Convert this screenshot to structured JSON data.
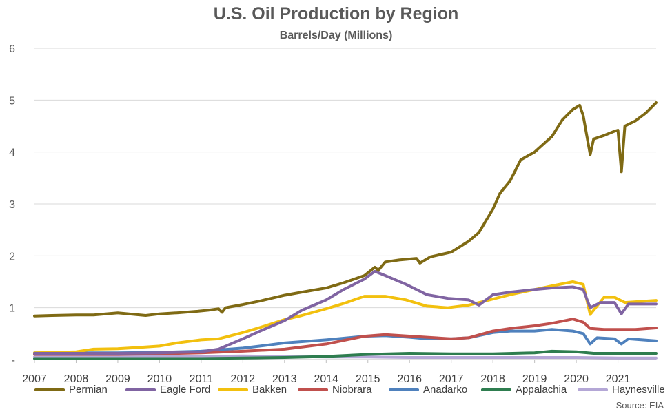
{
  "title": "U.S. Oil Production by Region",
  "subtitle": "Barrels/Day (Millions)",
  "source": "Source: EIA",
  "chart_data": {
    "type": "line",
    "title": "U.S. Oil Production by Region",
    "subtitle": "Barrels/Day (Millions)",
    "xlabel": "",
    "ylabel": "",
    "x_ticks": [
      "2007",
      "2008",
      "2009",
      "2010",
      "2011",
      "2012",
      "2013",
      "2014",
      "2015",
      "2016",
      "2017",
      "2018",
      "2019",
      "2020",
      "2021"
    ],
    "y_ticks": [
      "-",
      "1",
      "2",
      "3",
      "4",
      "5",
      "6"
    ],
    "ylim": [
      0,
      6
    ],
    "xlim": [
      "2007-01",
      "2021-12"
    ],
    "grid": true,
    "legend_position": "bottom",
    "series": [
      {
        "name": "Permian",
        "color": "#7F6A14",
        "points": [
          [
            "2007-01",
            0.84
          ],
          [
            "2007-06",
            0.85
          ],
          [
            "2008-01",
            0.86
          ],
          [
            "2008-06",
            0.86
          ],
          [
            "2009-01",
            0.9
          ],
          [
            "2009-09",
            0.85
          ],
          [
            "2010-01",
            0.88
          ],
          [
            "2010-06",
            0.9
          ],
          [
            "2010-12",
            0.93
          ],
          [
            "2011-03",
            0.95
          ],
          [
            "2011-06",
            0.98
          ],
          [
            "2011-07",
            0.91
          ],
          [
            "2011-08",
            1.0
          ],
          [
            "2012-01",
            1.06
          ],
          [
            "2012-06",
            1.13
          ],
          [
            "2013-01",
            1.24
          ],
          [
            "2013-06",
            1.3
          ],
          [
            "2014-01",
            1.38
          ],
          [
            "2014-06",
            1.48
          ],
          [
            "2014-12",
            1.62
          ],
          [
            "2015-03",
            1.78
          ],
          [
            "2015-04",
            1.72
          ],
          [
            "2015-06",
            1.88
          ],
          [
            "2015-10",
            1.92
          ],
          [
            "2016-03",
            1.95
          ],
          [
            "2016-04",
            1.86
          ],
          [
            "2016-07",
            1.98
          ],
          [
            "2017-01",
            2.07
          ],
          [
            "2017-06",
            2.28
          ],
          [
            "2017-09",
            2.45
          ],
          [
            "2018-01",
            2.9
          ],
          [
            "2018-03",
            3.2
          ],
          [
            "2018-06",
            3.45
          ],
          [
            "2018-09",
            3.85
          ],
          [
            "2019-01",
            4.0
          ],
          [
            "2019-06",
            4.3
          ],
          [
            "2019-09",
            4.62
          ],
          [
            "2019-12",
            4.82
          ],
          [
            "2020-02",
            4.9
          ],
          [
            "2020-03",
            4.7
          ],
          [
            "2020-05",
            3.95
          ],
          [
            "2020-06",
            4.25
          ],
          [
            "2020-09",
            4.32
          ],
          [
            "2020-12",
            4.4
          ],
          [
            "2021-01",
            4.42
          ],
          [
            "2021-02",
            3.62
          ],
          [
            "2021-03",
            4.5
          ],
          [
            "2021-06",
            4.6
          ],
          [
            "2021-09",
            4.75
          ],
          [
            "2021-12",
            4.95
          ]
        ]
      },
      {
        "name": "Eagle Ford",
        "color": "#8064A2",
        "points": [
          [
            "2007-01",
            0.12
          ],
          [
            "2009-01",
            0.12
          ],
          [
            "2010-01",
            0.13
          ],
          [
            "2011-01",
            0.15
          ],
          [
            "2011-06",
            0.2
          ],
          [
            "2012-01",
            0.4
          ],
          [
            "2012-06",
            0.55
          ],
          [
            "2013-01",
            0.75
          ],
          [
            "2013-06",
            0.95
          ],
          [
            "2014-01",
            1.15
          ],
          [
            "2014-06",
            1.35
          ],
          [
            "2014-12",
            1.55
          ],
          [
            "2015-03",
            1.7
          ],
          [
            "2015-06",
            1.62
          ],
          [
            "2015-12",
            1.45
          ],
          [
            "2016-06",
            1.25
          ],
          [
            "2016-12",
            1.18
          ],
          [
            "2017-06",
            1.15
          ],
          [
            "2017-09",
            1.05
          ],
          [
            "2018-01",
            1.25
          ],
          [
            "2018-06",
            1.3
          ],
          [
            "2019-01",
            1.35
          ],
          [
            "2019-06",
            1.38
          ],
          [
            "2019-12",
            1.4
          ],
          [
            "2020-03",
            1.35
          ],
          [
            "2020-05",
            1.0
          ],
          [
            "2020-08",
            1.1
          ],
          [
            "2020-12",
            1.1
          ],
          [
            "2021-02",
            0.88
          ],
          [
            "2021-04",
            1.07
          ],
          [
            "2021-12",
            1.07
          ]
        ]
      },
      {
        "name": "Bakken",
        "color": "#F2C00E",
        "points": [
          [
            "2007-01",
            0.13
          ],
          [
            "2008-01",
            0.15
          ],
          [
            "2008-06",
            0.2
          ],
          [
            "2009-01",
            0.21
          ],
          [
            "2009-06",
            0.23
          ],
          [
            "2010-01",
            0.26
          ],
          [
            "2010-06",
            0.32
          ],
          [
            "2011-01",
            0.38
          ],
          [
            "2011-06",
            0.4
          ],
          [
            "2012-01",
            0.52
          ],
          [
            "2012-06",
            0.62
          ],
          [
            "2013-01",
            0.77
          ],
          [
            "2013-06",
            0.85
          ],
          [
            "2014-01",
            0.98
          ],
          [
            "2014-06",
            1.08
          ],
          [
            "2014-12",
            1.22
          ],
          [
            "2015-06",
            1.22
          ],
          [
            "2015-12",
            1.15
          ],
          [
            "2016-06",
            1.03
          ],
          [
            "2016-12",
            1.0
          ],
          [
            "2017-06",
            1.05
          ],
          [
            "2017-12",
            1.15
          ],
          [
            "2018-06",
            1.25
          ],
          [
            "2019-01",
            1.35
          ],
          [
            "2019-06",
            1.42
          ],
          [
            "2019-12",
            1.5
          ],
          [
            "2020-03",
            1.45
          ],
          [
            "2020-05",
            0.87
          ],
          [
            "2020-09",
            1.2
          ],
          [
            "2020-12",
            1.2
          ],
          [
            "2021-03",
            1.1
          ],
          [
            "2021-12",
            1.14
          ]
        ]
      },
      {
        "name": "Niobrara",
        "color": "#C0504D",
        "points": [
          [
            "2007-01",
            0.1
          ],
          [
            "2009-01",
            0.1
          ],
          [
            "2010-01",
            0.11
          ],
          [
            "2011-01",
            0.13
          ],
          [
            "2012-01",
            0.16
          ],
          [
            "2013-01",
            0.2
          ],
          [
            "2014-01",
            0.3
          ],
          [
            "2014-12",
            0.45
          ],
          [
            "2015-06",
            0.48
          ],
          [
            "2016-06",
            0.43
          ],
          [
            "2017-01",
            0.4
          ],
          [
            "2017-06",
            0.42
          ],
          [
            "2018-01",
            0.55
          ],
          [
            "2018-06",
            0.6
          ],
          [
            "2019-01",
            0.65
          ],
          [
            "2019-06",
            0.7
          ],
          [
            "2019-12",
            0.78
          ],
          [
            "2020-03",
            0.72
          ],
          [
            "2020-05",
            0.6
          ],
          [
            "2020-09",
            0.58
          ],
          [
            "2021-06",
            0.58
          ],
          [
            "2021-12",
            0.61
          ]
        ]
      },
      {
        "name": "Anadarko",
        "color": "#4F81BD",
        "points": [
          [
            "2007-01",
            0.13
          ],
          [
            "2009-01",
            0.13
          ],
          [
            "2010-01",
            0.14
          ],
          [
            "2011-01",
            0.16
          ],
          [
            "2012-01",
            0.22
          ],
          [
            "2012-06",
            0.26
          ],
          [
            "2013-01",
            0.32
          ],
          [
            "2014-01",
            0.38
          ],
          [
            "2014-12",
            0.45
          ],
          [
            "2015-06",
            0.46
          ],
          [
            "2016-01",
            0.43
          ],
          [
            "2016-06",
            0.4
          ],
          [
            "2017-01",
            0.4
          ],
          [
            "2017-06",
            0.42
          ],
          [
            "2018-01",
            0.52
          ],
          [
            "2018-06",
            0.55
          ],
          [
            "2019-01",
            0.55
          ],
          [
            "2019-06",
            0.58
          ],
          [
            "2019-12",
            0.55
          ],
          [
            "2020-03",
            0.5
          ],
          [
            "2020-05",
            0.3
          ],
          [
            "2020-07",
            0.42
          ],
          [
            "2020-12",
            0.4
          ],
          [
            "2021-02",
            0.3
          ],
          [
            "2021-04",
            0.4
          ],
          [
            "2021-12",
            0.36
          ]
        ]
      },
      {
        "name": "Appalachia",
        "color": "#2E7D4F",
        "points": [
          [
            "2007-01",
            0.02
          ],
          [
            "2010-01",
            0.02
          ],
          [
            "2011-01",
            0.02
          ],
          [
            "2012-01",
            0.03
          ],
          [
            "2013-01",
            0.04
          ],
          [
            "2014-01",
            0.06
          ],
          [
            "2015-01",
            0.1
          ],
          [
            "2016-01",
            0.12
          ],
          [
            "2017-01",
            0.11
          ],
          [
            "2018-01",
            0.11
          ],
          [
            "2019-01",
            0.13
          ],
          [
            "2019-06",
            0.16
          ],
          [
            "2020-01",
            0.15
          ],
          [
            "2020-06",
            0.12
          ],
          [
            "2021-01",
            0.12
          ],
          [
            "2021-12",
            0.12
          ]
        ]
      },
      {
        "name": "Haynesville",
        "color": "#B4A7D6",
        "points": [
          [
            "2007-01",
            0.05
          ],
          [
            "2009-01",
            0.05
          ],
          [
            "2011-01",
            0.06
          ],
          [
            "2012-01",
            0.07
          ],
          [
            "2013-01",
            0.06
          ],
          [
            "2014-01",
            0.05
          ],
          [
            "2015-01",
            0.05
          ],
          [
            "2016-01",
            0.04
          ],
          [
            "2017-01",
            0.04
          ],
          [
            "2018-01",
            0.04
          ],
          [
            "2019-01",
            0.04
          ],
          [
            "2020-01",
            0.04
          ],
          [
            "2021-01",
            0.03
          ],
          [
            "2021-12",
            0.03
          ]
        ]
      }
    ]
  }
}
